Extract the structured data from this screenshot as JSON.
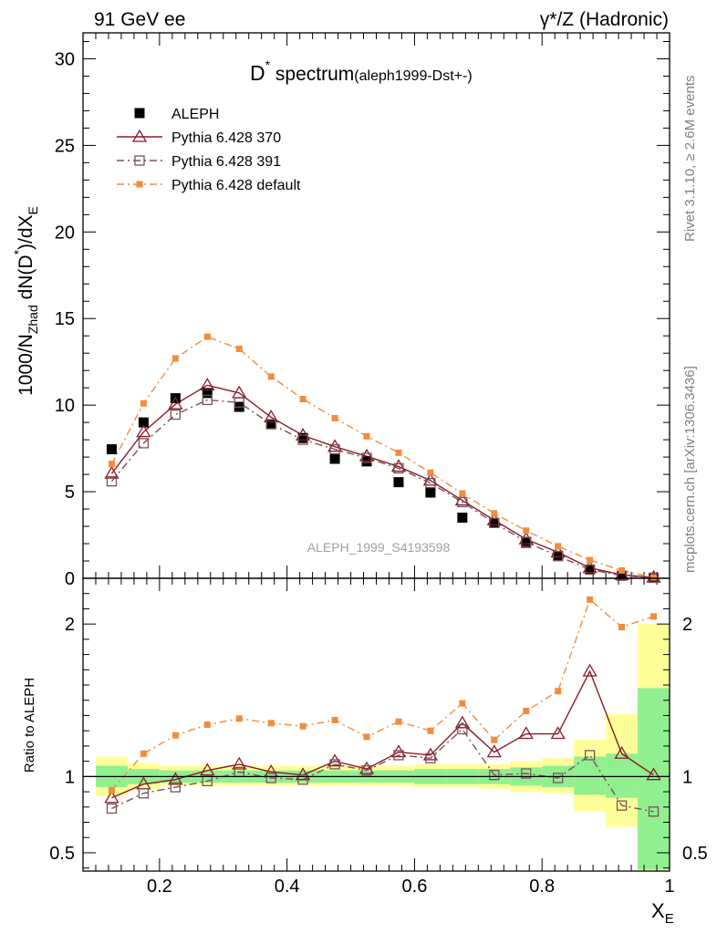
{
  "header": {
    "left": "91 GeV ee",
    "right": "γ*/Z (Hadronic)"
  },
  "title": {
    "main": "D",
    "sup": "*",
    "word": " spectrum",
    "sub": "(aleph1999-Dst+-)"
  },
  "side_labels": {
    "rivet_prefix": "Rivet 3.1.10, ",
    "rivet_suffix": "≥ 2.6M events",
    "mcplots": "mcplots.cern.ch [arXiv:1306.3436]"
  },
  "reference": "ALEPH_1999_S4193598",
  "colors": {
    "data": "#000000",
    "p370": "#8b1a2a",
    "p391": "#7a5058",
    "default": "#f28c3c",
    "band_inner": "#90f090",
    "band_outer": "#ffff99"
  },
  "chart_data": [
    {
      "type": "line",
      "panel": "main",
      "ylabel": {
        "pre": "1000/N",
        "sub": "Zhad",
        "mid": " dN(D",
        "sup": "*",
        "post": ")/dX",
        "sub2": "E"
      },
      "xlim": [
        0.08,
        1.0
      ],
      "ylim": [
        0,
        31.5
      ],
      "y_ticks": [
        {
          "v": 0,
          "label": "0"
        },
        {
          "v": 5,
          "label": "5"
        },
        {
          "v": 10,
          "label": "10"
        },
        {
          "v": 15,
          "label": "15"
        },
        {
          "v": 20,
          "label": "20"
        },
        {
          "v": 25,
          "label": "25"
        },
        {
          "v": 30,
          "label": "30"
        }
      ],
      "legend_position": "top-left",
      "x": [
        0.125,
        0.175,
        0.225,
        0.275,
        0.325,
        0.375,
        0.425,
        0.475,
        0.525,
        0.575,
        0.625,
        0.675,
        0.725,
        0.775,
        0.825,
        0.875,
        0.925,
        0.975
      ],
      "series": [
        {
          "key": "data",
          "name": "ALEPH",
          "marker": "filled-square",
          "values": [
            7.45,
            9.0,
            10.4,
            10.7,
            9.9,
            8.9,
            8.1,
            6.9,
            6.75,
            5.55,
            4.95,
            3.5,
            3.2,
            2.05,
            1.3,
            0.5,
            0.15,
            0.03
          ]
        },
        {
          "key": "p370",
          "name": "Pythia 6.428 370",
          "marker": "open-triangle",
          "line": "solid",
          "values": [
            6.05,
            8.45,
            10.05,
            11.15,
            10.7,
            9.3,
            8.25,
            7.6,
            7.05,
            6.45,
            5.65,
            4.5,
            3.35,
            2.25,
            1.5,
            0.6,
            0.2,
            0.05
          ]
        },
        {
          "key": "p391",
          "name": "Pythia 6.428 391",
          "marker": "open-square",
          "line": "dashdot",
          "values": [
            5.6,
            7.8,
            9.45,
            10.3,
            10.15,
            8.9,
            8.0,
            7.45,
            6.95,
            6.35,
            5.5,
            4.4,
            3.2,
            2.1,
            1.28,
            0.5,
            0.15,
            0.03
          ]
        },
        {
          "key": "default",
          "name": "Pythia 6.428 default",
          "marker": "small-filled-square",
          "line": "dashdot",
          "values": [
            6.6,
            10.1,
            12.7,
            13.95,
            13.25,
            11.65,
            10.35,
            9.25,
            8.2,
            7.25,
            6.1,
            4.9,
            3.75,
            2.75,
            1.85,
            1.05,
            0.45,
            0.05
          ]
        }
      ]
    },
    {
      "type": "line",
      "panel": "ratio",
      "ylabel": "Ratio to ALEPH",
      "xlabel": {
        "main": "X",
        "sub": "E"
      },
      "xlim": [
        0.08,
        1.0
      ],
      "ylim": [
        0.38,
        2.3
      ],
      "x_ticks": [
        {
          "v": 0.2,
          "label": "0.2"
        },
        {
          "v": 0.4,
          "label": "0.4"
        },
        {
          "v": 0.6,
          "label": "0.6"
        },
        {
          "v": 0.8,
          "label": "0.8"
        },
        {
          "v": 1.0,
          "label": "1"
        }
      ],
      "y_ticks": [
        {
          "v": 0.5,
          "label": "0.5"
        },
        {
          "v": 1,
          "label": "1"
        },
        {
          "v": 2,
          "label": "2"
        }
      ],
      "x": [
        0.125,
        0.175,
        0.225,
        0.275,
        0.325,
        0.375,
        0.425,
        0.475,
        0.525,
        0.575,
        0.625,
        0.675,
        0.725,
        0.775,
        0.825,
        0.875,
        0.925,
        0.975
      ],
      "bands": {
        "edges": [
          0.1,
          0.15,
          0.2,
          0.25,
          0.3,
          0.35,
          0.4,
          0.45,
          0.5,
          0.55,
          0.6,
          0.65,
          0.7,
          0.75,
          0.8,
          0.85,
          0.9,
          0.95,
          1.0
        ],
        "inner_lo": [
          0.93,
          0.95,
          0.96,
          0.96,
          0.96,
          0.96,
          0.96,
          0.96,
          0.96,
          0.96,
          0.95,
          0.95,
          0.95,
          0.94,
          0.93,
          0.88,
          0.86,
          0.39
        ],
        "inner_hi": [
          1.07,
          1.05,
          1.04,
          1.04,
          1.04,
          1.04,
          1.04,
          1.04,
          1.04,
          1.04,
          1.05,
          1.05,
          1.05,
          1.06,
          1.07,
          1.13,
          1.15,
          1.58
        ],
        "outer_lo": [
          0.87,
          0.91,
          0.94,
          0.94,
          0.94,
          0.94,
          0.94,
          0.94,
          0.94,
          0.94,
          0.93,
          0.93,
          0.92,
          0.9,
          0.89,
          0.77,
          0.67,
          0.38
        ],
        "outer_hi": [
          1.13,
          1.09,
          1.07,
          1.07,
          1.07,
          1.07,
          1.07,
          1.07,
          1.07,
          1.07,
          1.08,
          1.08,
          1.08,
          1.1,
          1.12,
          1.24,
          1.41,
          2.0
        ]
      },
      "series": [
        {
          "key": "p370",
          "name": "Pythia 6.428 370",
          "values": [
            0.86,
            0.95,
            0.98,
            1.04,
            1.08,
            1.03,
            1.01,
            1.1,
            1.05,
            1.16,
            1.14,
            1.35,
            1.16,
            1.28,
            1.28,
            1.69,
            1.15,
            1.01
          ]
        },
        {
          "key": "p391",
          "name": "Pythia 6.428 391",
          "values": [
            0.79,
            0.89,
            0.93,
            0.97,
            1.03,
            0.99,
            0.98,
            1.08,
            1.04,
            1.14,
            1.12,
            1.31,
            1.01,
            1.02,
            0.99,
            1.14,
            0.81,
            0.77
          ]
        },
        {
          "key": "default",
          "name": "Pythia 6.428 default",
          "values": [
            0.91,
            1.15,
            1.27,
            1.34,
            1.38,
            1.35,
            1.33,
            1.37,
            1.26,
            1.36,
            1.3,
            1.48,
            1.24,
            1.43,
            1.56,
            2.16,
            1.98,
            2.05
          ]
        }
      ]
    }
  ]
}
